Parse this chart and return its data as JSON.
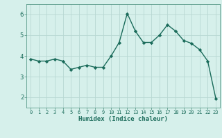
{
  "x": [
    0,
    1,
    2,
    3,
    4,
    5,
    6,
    7,
    8,
    9,
    10,
    11,
    12,
    13,
    14,
    15,
    16,
    17,
    18,
    19,
    20,
    21,
    22,
    23
  ],
  "y": [
    3.85,
    3.75,
    3.75,
    3.85,
    3.75,
    3.35,
    3.45,
    3.55,
    3.45,
    3.45,
    4.0,
    4.65,
    6.05,
    5.2,
    4.65,
    4.65,
    5.0,
    5.5,
    5.2,
    4.75,
    4.6,
    4.3,
    3.75,
    1.95
  ],
  "xlabel": "Humidex (Indice chaleur)",
  "xlim": [
    -0.5,
    23.5
  ],
  "ylim": [
    1.5,
    6.5
  ],
  "yticks": [
    2,
    3,
    4,
    5,
    6
  ],
  "xticks": [
    0,
    1,
    2,
    3,
    4,
    5,
    6,
    7,
    8,
    9,
    10,
    11,
    12,
    13,
    14,
    15,
    16,
    17,
    18,
    19,
    20,
    21,
    22,
    23
  ],
  "line_color": "#1a6b5a",
  "marker": "D",
  "marker_size": 2.2,
  "bg_color": "#d6f0eb",
  "grid_color": "#b8d8d2",
  "line_width": 1.0
}
